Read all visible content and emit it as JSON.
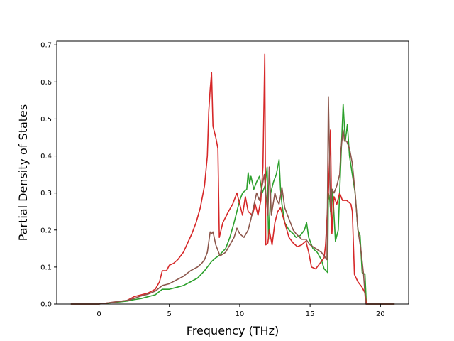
{
  "chart_data": {
    "type": "line",
    "title": "",
    "xlabel": "Frequency (THz)",
    "ylabel": "Partial Density of States",
    "xlim": [
      -3.0,
      22.0
    ],
    "ylim": [
      0.0,
      0.71
    ],
    "xticks": [
      0,
      5,
      10,
      15,
      20
    ],
    "yticks": [
      0.0,
      0.1,
      0.2,
      0.3,
      0.4,
      0.5,
      0.6,
      0.7
    ],
    "xtick_labels": [
      "0",
      "5",
      "10",
      "15",
      "20"
    ],
    "ytick_labels": [
      "0.0",
      "0.1",
      "0.2",
      "0.3",
      "0.4",
      "0.5",
      "0.6",
      "0.7"
    ],
    "grid": false,
    "legend": "none",
    "series": [
      {
        "color": "#2ca02c",
        "points": [
          [
            -2.0,
            0.0
          ],
          [
            0.0,
            0.0
          ],
          [
            1.0,
            0.004
          ],
          [
            2.0,
            0.008
          ],
          [
            2.5,
            0.012
          ],
          [
            3.0,
            0.015
          ],
          [
            3.5,
            0.02
          ],
          [
            4.0,
            0.025
          ],
          [
            4.5,
            0.04
          ],
          [
            5.0,
            0.04
          ],
          [
            5.5,
            0.045
          ],
          [
            6.0,
            0.05
          ],
          [
            6.5,
            0.06
          ],
          [
            7.0,
            0.07
          ],
          [
            7.5,
            0.09
          ],
          [
            8.0,
            0.115
          ],
          [
            8.3,
            0.125
          ],
          [
            8.5,
            0.13
          ],
          [
            9.0,
            0.15
          ],
          [
            9.3,
            0.18
          ],
          [
            9.6,
            0.22
          ],
          [
            9.8,
            0.25
          ],
          [
            10.0,
            0.28
          ],
          [
            10.2,
            0.3
          ],
          [
            10.5,
            0.31
          ],
          [
            10.6,
            0.355
          ],
          [
            10.7,
            0.325
          ],
          [
            10.8,
            0.345
          ],
          [
            11.0,
            0.31
          ],
          [
            11.2,
            0.33
          ],
          [
            11.4,
            0.345
          ],
          [
            11.6,
            0.3
          ],
          [
            11.8,
            0.32
          ],
          [
            11.95,
            0.37
          ],
          [
            12.05,
            0.175
          ],
          [
            12.2,
            0.3
          ],
          [
            12.4,
            0.33
          ],
          [
            12.6,
            0.35
          ],
          [
            12.8,
            0.39
          ],
          [
            12.9,
            0.31
          ],
          [
            13.0,
            0.27
          ],
          [
            13.2,
            0.22
          ],
          [
            13.5,
            0.2
          ],
          [
            13.8,
            0.19
          ],
          [
            14.0,
            0.18
          ],
          [
            14.3,
            0.185
          ],
          [
            14.6,
            0.2
          ],
          [
            14.75,
            0.22
          ],
          [
            14.9,
            0.18
          ],
          [
            15.2,
            0.15
          ],
          [
            15.5,
            0.14
          ],
          [
            15.8,
            0.12
          ],
          [
            16.0,
            0.095
          ],
          [
            16.15,
            0.09
          ],
          [
            16.25,
            0.085
          ],
          [
            16.3,
            0.3
          ],
          [
            16.4,
            0.28
          ],
          [
            16.5,
            0.23
          ],
          [
            16.6,
            0.31
          ],
          [
            16.8,
            0.17
          ],
          [
            17.0,
            0.2
          ],
          [
            17.2,
            0.4
          ],
          [
            17.35,
            0.54
          ],
          [
            17.5,
            0.44
          ],
          [
            17.65,
            0.485
          ],
          [
            17.8,
            0.4
          ],
          [
            18.0,
            0.35
          ],
          [
            18.2,
            0.3
          ],
          [
            18.4,
            0.2
          ],
          [
            18.55,
            0.185
          ],
          [
            18.7,
            0.085
          ],
          [
            18.9,
            0.08
          ],
          [
            19.0,
            0.0
          ],
          [
            21.0,
            0.0
          ]
        ]
      },
      {
        "color": "#d62728",
        "points": [
          [
            -2.0,
            0.0
          ],
          [
            0.0,
            0.0
          ],
          [
            1.0,
            0.005
          ],
          [
            2.0,
            0.01
          ],
          [
            2.5,
            0.02
          ],
          [
            3.0,
            0.025
          ],
          [
            3.5,
            0.03
          ],
          [
            4.0,
            0.04
          ],
          [
            4.3,
            0.06
          ],
          [
            4.5,
            0.09
          ],
          [
            4.8,
            0.09
          ],
          [
            5.0,
            0.105
          ],
          [
            5.3,
            0.11
          ],
          [
            5.6,
            0.12
          ],
          [
            6.0,
            0.14
          ],
          [
            6.3,
            0.165
          ],
          [
            6.6,
            0.19
          ],
          [
            6.9,
            0.22
          ],
          [
            7.2,
            0.26
          ],
          [
            7.5,
            0.32
          ],
          [
            7.7,
            0.4
          ],
          [
            7.8,
            0.52
          ],
          [
            7.9,
            0.58
          ],
          [
            8.0,
            0.625
          ],
          [
            8.1,
            0.48
          ],
          [
            8.3,
            0.45
          ],
          [
            8.45,
            0.42
          ],
          [
            8.55,
            0.18
          ],
          [
            8.8,
            0.22
          ],
          [
            9.2,
            0.25
          ],
          [
            9.5,
            0.27
          ],
          [
            9.8,
            0.3
          ],
          [
            10.0,
            0.27
          ],
          [
            10.2,
            0.24
          ],
          [
            10.4,
            0.29
          ],
          [
            10.6,
            0.25
          ],
          [
            10.9,
            0.24
          ],
          [
            11.1,
            0.27
          ],
          [
            11.3,
            0.24
          ],
          [
            11.5,
            0.28
          ],
          [
            11.65,
            0.37
          ],
          [
            11.78,
            0.675
          ],
          [
            11.85,
            0.16
          ],
          [
            12.0,
            0.165
          ],
          [
            12.1,
            0.2
          ],
          [
            12.3,
            0.16
          ],
          [
            12.5,
            0.22
          ],
          [
            12.7,
            0.25
          ],
          [
            12.9,
            0.26
          ],
          [
            13.2,
            0.22
          ],
          [
            13.5,
            0.18
          ],
          [
            13.8,
            0.165
          ],
          [
            14.1,
            0.155
          ],
          [
            14.4,
            0.16
          ],
          [
            14.7,
            0.17
          ],
          [
            14.9,
            0.14
          ],
          [
            15.1,
            0.1
          ],
          [
            15.4,
            0.095
          ],
          [
            15.7,
            0.11
          ],
          [
            16.0,
            0.125
          ],
          [
            16.1,
            0.16
          ],
          [
            16.3,
            0.3
          ],
          [
            16.45,
            0.47
          ],
          [
            16.55,
            0.19
          ],
          [
            16.7,
            0.29
          ],
          [
            16.9,
            0.27
          ],
          [
            17.1,
            0.3
          ],
          [
            17.3,
            0.28
          ],
          [
            17.6,
            0.28
          ],
          [
            17.9,
            0.27
          ],
          [
            18.0,
            0.25
          ],
          [
            18.15,
            0.08
          ],
          [
            18.4,
            0.06
          ],
          [
            18.7,
            0.045
          ],
          [
            18.9,
            0.03
          ],
          [
            19.0,
            0.0
          ],
          [
            21.0,
            0.0
          ]
        ]
      },
      {
        "color": "#8c564b",
        "points": [
          [
            -2.0,
            0.0
          ],
          [
            0.0,
            0.0
          ],
          [
            1.0,
            0.005
          ],
          [
            2.0,
            0.01
          ],
          [
            2.5,
            0.015
          ],
          [
            3.0,
            0.022
          ],
          [
            3.5,
            0.027
          ],
          [
            4.0,
            0.035
          ],
          [
            4.5,
            0.05
          ],
          [
            5.0,
            0.055
          ],
          [
            5.5,
            0.065
          ],
          [
            6.0,
            0.075
          ],
          [
            6.5,
            0.09
          ],
          [
            7.0,
            0.1
          ],
          [
            7.3,
            0.11
          ],
          [
            7.5,
            0.12
          ],
          [
            7.7,
            0.14
          ],
          [
            7.9,
            0.195
          ],
          [
            8.0,
            0.19
          ],
          [
            8.1,
            0.195
          ],
          [
            8.3,
            0.16
          ],
          [
            8.6,
            0.13
          ],
          [
            9.0,
            0.14
          ],
          [
            9.3,
            0.16
          ],
          [
            9.6,
            0.18
          ],
          [
            9.8,
            0.205
          ],
          [
            10.0,
            0.19
          ],
          [
            10.3,
            0.18
          ],
          [
            10.6,
            0.2
          ],
          [
            10.8,
            0.23
          ],
          [
            11.0,
            0.265
          ],
          [
            11.2,
            0.3
          ],
          [
            11.4,
            0.28
          ],
          [
            11.6,
            0.32
          ],
          [
            11.75,
            0.35
          ],
          [
            11.85,
            0.3
          ],
          [
            12.0,
            0.24
          ],
          [
            12.1,
            0.37
          ],
          [
            12.25,
            0.24
          ],
          [
            12.5,
            0.3
          ],
          [
            12.65,
            0.28
          ],
          [
            12.8,
            0.27
          ],
          [
            13.0,
            0.315
          ],
          [
            13.2,
            0.26
          ],
          [
            13.5,
            0.23
          ],
          [
            13.8,
            0.2
          ],
          [
            14.0,
            0.19
          ],
          [
            14.4,
            0.175
          ],
          [
            14.7,
            0.175
          ],
          [
            15.0,
            0.16
          ],
          [
            15.4,
            0.15
          ],
          [
            15.8,
            0.14
          ],
          [
            16.0,
            0.13
          ],
          [
            16.2,
            0.12
          ],
          [
            16.3,
            0.56
          ],
          [
            16.45,
            0.25
          ],
          [
            16.55,
            0.31
          ],
          [
            16.7,
            0.3
          ],
          [
            16.9,
            0.32
          ],
          [
            17.1,
            0.35
          ],
          [
            17.2,
            0.42
          ],
          [
            17.35,
            0.47
          ],
          [
            17.45,
            0.44
          ],
          [
            17.6,
            0.44
          ],
          [
            17.8,
            0.42
          ],
          [
            18.0,
            0.38
          ],
          [
            18.2,
            0.3
          ],
          [
            18.4,
            0.2
          ],
          [
            18.6,
            0.15
          ],
          [
            18.8,
            0.08
          ],
          [
            18.95,
            0.0
          ],
          [
            21.0,
            0.0
          ]
        ]
      }
    ]
  }
}
